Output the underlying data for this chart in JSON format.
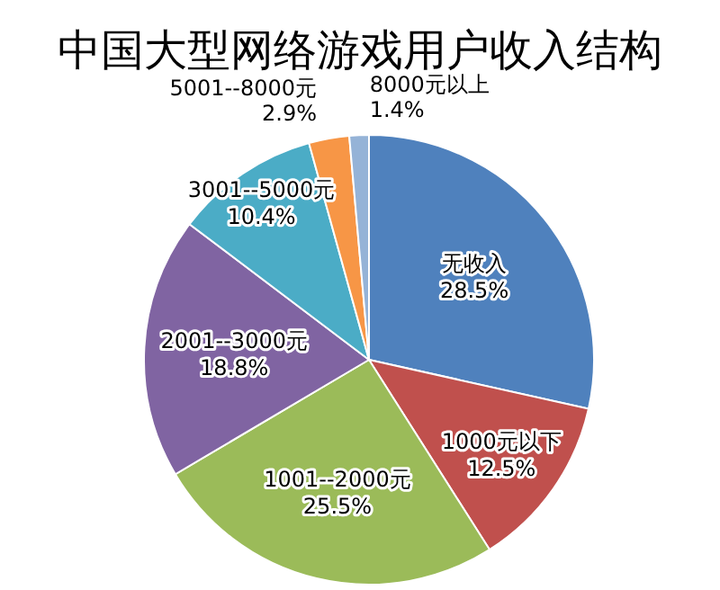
{
  "chart_data": {
    "type": "pie",
    "title": "中国大型网络游戏用户收入结构",
    "categories": [
      "无收入",
      "1000元以下",
      "1001--2000元",
      "2001--3000元",
      "3001--5000元",
      "5001--8000元",
      "8000元以上"
    ],
    "values": [
      28.5,
      12.5,
      25.5,
      18.8,
      10.4,
      2.9,
      1.4
    ],
    "colors": [
      "#4f81bd",
      "#c0504d",
      "#9bbb59",
      "#8064a2",
      "#4bacc6",
      "#f79646",
      "#95b3d7"
    ],
    "value_labels": [
      "28.5%",
      "12.5%",
      "25.5%",
      "18.8%",
      "10.4%",
      "2.9%",
      "1.4%"
    ]
  }
}
